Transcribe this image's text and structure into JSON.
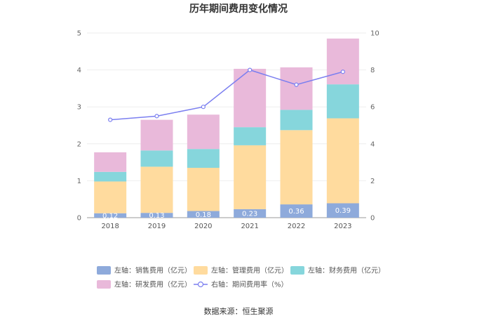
{
  "chart_data": {
    "type": "bar",
    "stacked": true,
    "title": "历年期间费用变化情况",
    "categories": [
      "2018",
      "2019",
      "2020",
      "2021",
      "2022",
      "2023"
    ],
    "y_left": {
      "min": 0,
      "max": 5,
      "ticks": [
        "0",
        "1",
        "2",
        "3",
        "4",
        "5"
      ]
    },
    "y_right": {
      "min": 0,
      "max": 10,
      "ticks": [
        "0",
        "2",
        "4",
        "6",
        "8",
        "10"
      ]
    },
    "series": [
      {
        "name": "左轴：销售费用（亿元）",
        "color": "#8eaadb",
        "axis": "left",
        "values": [
          0.12,
          0.13,
          0.18,
          0.23,
          0.36,
          0.39
        ],
        "labels": [
          "0.12",
          "0.13",
          "0.18",
          "0.23",
          "0.36",
          "0.39"
        ]
      },
      {
        "name": "左轴：管理费用（亿元）",
        "color": "#ffdb9e",
        "axis": "left",
        "values": [
          0.86,
          1.25,
          1.17,
          1.73,
          2.01,
          2.3
        ]
      },
      {
        "name": "左轴：财务费用（亿元）",
        "color": "#86d6dc",
        "axis": "left",
        "values": [
          0.26,
          0.44,
          0.51,
          0.49,
          0.55,
          0.92
        ]
      },
      {
        "name": "左轴：研发费用（亿元）",
        "color": "#e9b9da",
        "axis": "left",
        "values": [
          0.53,
          0.83,
          0.93,
          1.58,
          1.15,
          1.24
        ]
      },
      {
        "name": "右轴：期间费用率（%）",
        "type": "line",
        "color": "#7b7ff0",
        "axis": "right",
        "values": [
          5.3,
          5.5,
          6.0,
          8.0,
          7.2,
          7.9
        ]
      }
    ],
    "legend_position": "bottom",
    "grid": true
  },
  "footer": {
    "source": "数据来源：恒生聚源"
  }
}
